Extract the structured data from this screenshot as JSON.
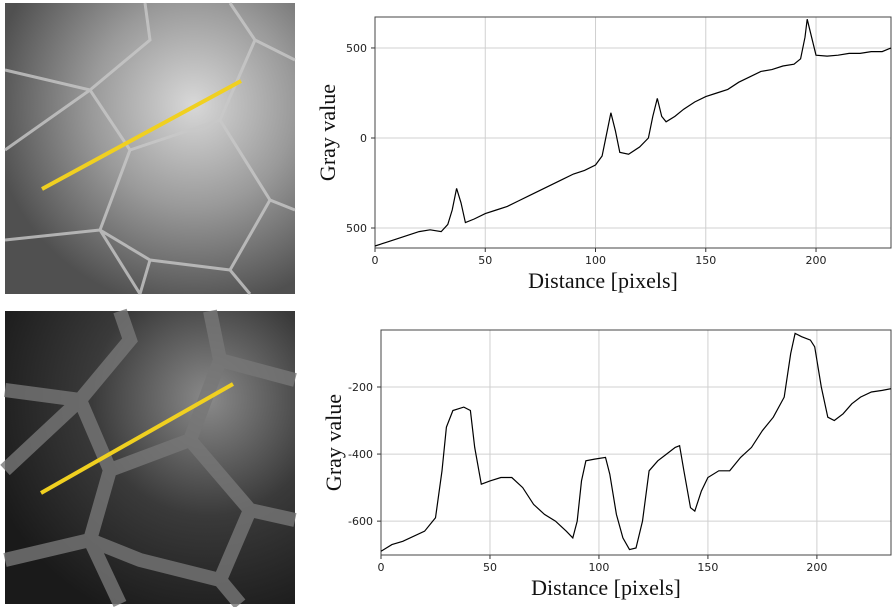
{
  "chart_data": [
    {
      "type": "line",
      "xlabel": "Distance [pixels]",
      "ylabel": "Gray value",
      "color": "#000000",
      "grid": true,
      "xlim": [
        0,
        234
      ],
      "ylim": [
        -611,
        672
      ],
      "xticks": [
        0,
        50,
        100,
        150,
        200
      ],
      "yticks": [
        {
          "value": -500,
          "label": "500"
        },
        0,
        500
      ],
      "x": [
        0,
        5,
        10,
        15,
        20,
        25,
        30,
        33,
        35,
        37,
        39,
        41,
        45,
        50,
        55,
        60,
        65,
        70,
        75,
        80,
        85,
        90,
        95,
        100,
        103,
        105,
        107,
        109,
        111,
        115,
        120,
        124,
        126,
        128,
        130,
        132,
        136,
        140,
        145,
        150,
        155,
        160,
        165,
        170,
        175,
        180,
        185,
        190,
        193,
        195,
        196,
        198,
        200,
        205,
        210,
        215,
        220,
        225,
        230,
        234
      ],
      "values": [
        -600,
        -580,
        -560,
        -540,
        -520,
        -510,
        -520,
        -480,
        -400,
        -280,
        -360,
        -470,
        -450,
        -420,
        -400,
        -380,
        -350,
        -320,
        -290,
        -260,
        -230,
        -200,
        -180,
        -150,
        -100,
        20,
        140,
        40,
        -80,
        -90,
        -50,
        0,
        120,
        220,
        120,
        90,
        120,
        160,
        200,
        230,
        250,
        270,
        310,
        340,
        370,
        380,
        400,
        410,
        440,
        560,
        660,
        560,
        460,
        455,
        460,
        470,
        470,
        480,
        480,
        500
      ]
    },
    {
      "type": "line",
      "xlabel": "Distance [pixels]",
      "ylabel": "Gray value",
      "color": "#000000",
      "grid": true,
      "xlim": [
        0,
        234
      ],
      "ylim": [
        -701,
        -30
      ],
      "xticks": [
        0,
        50,
        100,
        150,
        200
      ],
      "yticks": [
        -600,
        -400,
        -200
      ],
      "x": [
        0,
        5,
        10,
        20,
        25,
        28,
        30,
        33,
        38,
        41,
        43,
        46,
        50,
        55,
        60,
        65,
        70,
        75,
        80,
        85,
        88,
        90,
        92,
        94,
        98,
        103,
        105,
        108,
        111,
        114,
        117,
        120,
        123,
        127,
        131,
        135,
        137,
        139,
        142,
        144,
        147,
        150,
        155,
        160,
        165,
        170,
        175,
        180,
        185,
        188,
        190,
        193,
        197,
        199,
        202,
        205,
        208,
        212,
        216,
        220,
        225,
        230,
        234
      ],
      "values": [
        -690,
        -670,
        -660,
        -630,
        -590,
        -450,
        -320,
        -270,
        -260,
        -270,
        -380,
        -490,
        -480,
        -470,
        -470,
        -500,
        -550,
        -580,
        -600,
        -630,
        -650,
        -600,
        -480,
        -420,
        -415,
        -410,
        -460,
        -580,
        -650,
        -685,
        -680,
        -600,
        -450,
        -420,
        -400,
        -380,
        -375,
        -450,
        -560,
        -570,
        -510,
        -470,
        -450,
        -450,
        -410,
        -380,
        -330,
        -290,
        -230,
        -100,
        -40,
        -50,
        -60,
        -80,
        -200,
        -290,
        -300,
        -280,
        -250,
        -230,
        -215,
        -210,
        -205
      ]
    }
  ]
}
